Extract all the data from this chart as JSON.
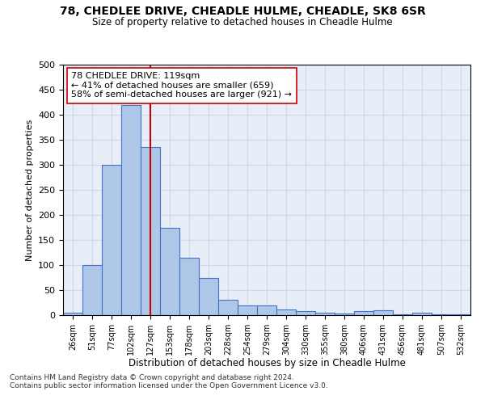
{
  "title1": "78, CHEDLEE DRIVE, CHEADLE HULME, CHEADLE, SK8 6SR",
  "title2": "Size of property relative to detached houses in Cheadle Hulme",
  "xlabel": "Distribution of detached houses by size in Cheadle Hulme",
  "ylabel": "Number of detached properties",
  "categories": [
    "26sqm",
    "51sqm",
    "77sqm",
    "102sqm",
    "127sqm",
    "153sqm",
    "178sqm",
    "203sqm",
    "228sqm",
    "254sqm",
    "279sqm",
    "304sqm",
    "330sqm",
    "355sqm",
    "380sqm",
    "406sqm",
    "431sqm",
    "456sqm",
    "481sqm",
    "507sqm",
    "532sqm"
  ],
  "values": [
    5,
    100,
    300,
    420,
    335,
    175,
    115,
    75,
    30,
    20,
    20,
    12,
    8,
    5,
    3,
    8,
    10,
    2,
    5,
    2,
    1
  ],
  "bar_color": "#aec6e8",
  "bar_edge_color": "#4472c4",
  "vline_x_index": 4,
  "vline_color": "#cc0000",
  "annotation_text": "78 CHEDLEE DRIVE: 119sqm\n← 41% of detached houses are smaller (659)\n58% of semi-detached houses are larger (921) →",
  "annotation_box_color": "#ffffff",
  "annotation_box_edge": "#cc0000",
  "grid_color": "#d0d8e8",
  "bg_color": "#e8eef8",
  "footer1": "Contains HM Land Registry data © Crown copyright and database right 2024.",
  "footer2": "Contains public sector information licensed under the Open Government Licence v3.0.",
  "ylim": [
    0,
    500
  ]
}
